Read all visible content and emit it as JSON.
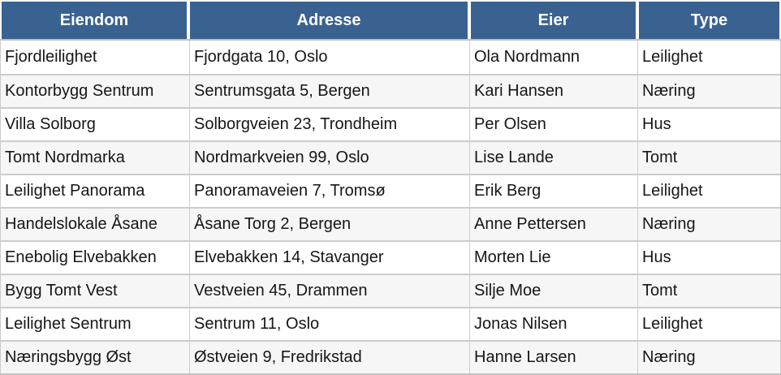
{
  "chart_data": {
    "type": "table",
    "columns": [
      "Eiendom",
      "Adresse",
      "Eier",
      "Type"
    ],
    "rows": [
      [
        "Fjordleilighet",
        "Fjordgata 10, Oslo",
        "Ola Nordmann",
        "Leilighet"
      ],
      [
        "Kontorbygg Sentrum",
        "Sentrumsgata 5, Bergen",
        "Kari Hansen",
        "Næring"
      ],
      [
        "Villa Solborg",
        "Solborgveien 23, Trondheim",
        "Per Olsen",
        "Hus"
      ],
      [
        "Tomt Nordmarka",
        "Nordmarkveien 99, Oslo",
        "Lise Lande",
        "Tomt"
      ],
      [
        "Leilighet Panorama",
        "Panoramaveien 7, Tromsø",
        "Erik Berg",
        "Leilighet"
      ],
      [
        "Handelslokale Åsane",
        "Åsane Torg 2, Bergen",
        "Anne Pettersen",
        "Næring"
      ],
      [
        "Enebolig Elvebakken",
        "Elvebakken 14, Stavanger",
        "Morten Lie",
        "Hus"
      ],
      [
        "Bygg Tomt Vest",
        "Vestveien 45, Drammen",
        "Silje Moe",
        "Tomt"
      ],
      [
        "Leilighet Sentrum",
        "Sentrum 11, Oslo",
        "Jonas Nilsen",
        "Leilighet"
      ],
      [
        "Næringsbygg Øst",
        "Østveien 9, Fredrikstad",
        "Hanne Larsen",
        "Næring"
      ]
    ],
    "layout": {
      "header_align": "center",
      "cell_align": "left",
      "zebra_striping": true,
      "grid": true
    }
  },
  "colors": {
    "header_bg": "#3A6291",
    "header_text": "#FFFFFF",
    "row_bg": "#FFFFFF",
    "row_alt_bg": "#F6F6F6",
    "border": "#CCCCCC",
    "border_strong": "#C2C2C2",
    "text": "#161616"
  }
}
